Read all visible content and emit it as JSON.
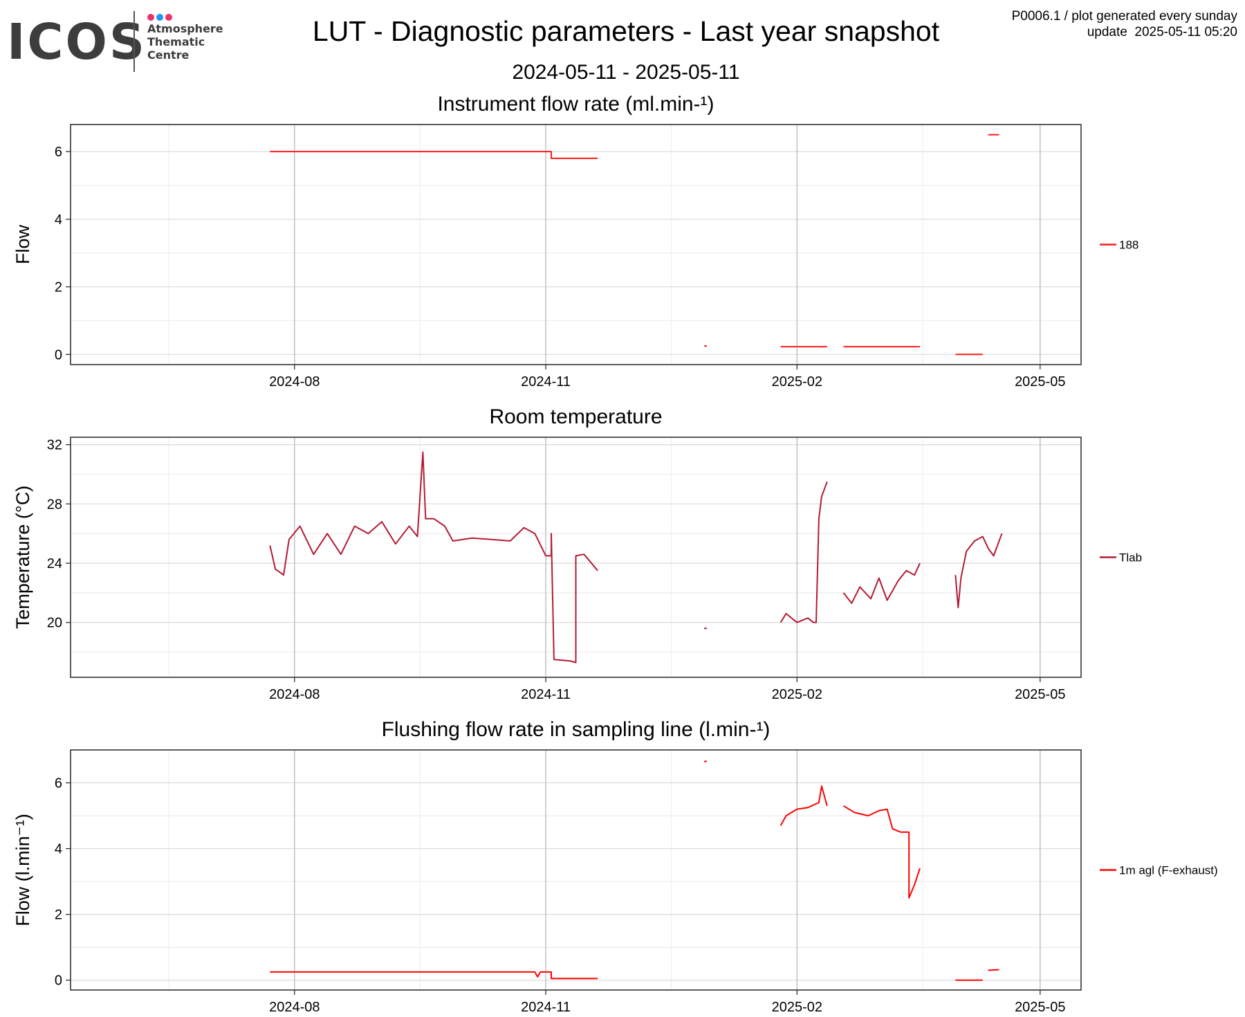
{
  "header": {
    "logo": {
      "word": "ICOS",
      "line1": "Atmosphere",
      "line2": "Thematic",
      "line3": "Centre",
      "dot_colors": [
        "#e8336c",
        "#2196f3",
        "#e8336c"
      ]
    },
    "title": "LUT - Diagnostic parameters - Last year snapshot",
    "date_range": "2024-05-11 - 2025-05-11",
    "meta_line1": "P0006.1 / plot generated every sunday",
    "meta_line2": "update  2025-05-11 05:20"
  },
  "chart_data": [
    {
      "type": "line",
      "title": "Instrument flow rate (ml.min-¹)",
      "ylabel": "Flow",
      "xlabel": "",
      "x_range": [
        "2024-05-11",
        "2025-05-16"
      ],
      "ylim": [
        -0.3,
        6.8
      ],
      "x_ticks": [
        "2024-08-01",
        "2024-11-01",
        "2025-02-01",
        "2025-05-01"
      ],
      "x_tick_labels": [
        "2024-08",
        "2024-11",
        "2025-02",
        "2025-05"
      ],
      "y_ticks": [
        0,
        2,
        4,
        6
      ],
      "grid": true,
      "legend_position": "right",
      "series": [
        {
          "name": "188",
          "color": "#ff1a1a",
          "segments": [
            [
              [
                "2024-07-23",
                6.0
              ],
              [
                "2024-11-03",
                6.0
              ],
              [
                "2024-11-03",
                5.8
              ],
              [
                "2024-11-20",
                5.8
              ]
            ],
            [
              [
                "2024-12-29",
                0.25
              ],
              [
                "2024-12-30",
                0.25
              ]
            ],
            [
              [
                "2025-01-26",
                0.23
              ],
              [
                "2025-02-12",
                0.23
              ]
            ],
            [
              [
                "2025-02-18",
                0.23
              ],
              [
                "2025-03-18",
                0.23
              ]
            ],
            [
              [
                "2025-03-31",
                0.0
              ],
              [
                "2025-04-10",
                0.0
              ]
            ],
            [
              [
                "2025-04-12",
                6.5
              ],
              [
                "2025-04-16",
                6.5
              ]
            ]
          ]
        }
      ]
    },
    {
      "type": "line",
      "title": "Room temperature",
      "ylabel": "Temperature (°C)",
      "xlabel": "",
      "x_range": [
        "2024-05-11",
        "2025-05-16"
      ],
      "ylim": [
        16.3,
        32.5
      ],
      "x_ticks": [
        "2024-08-01",
        "2024-11-01",
        "2025-02-01",
        "2025-05-01"
      ],
      "x_tick_labels": [
        "2024-08",
        "2024-11",
        "2025-02",
        "2025-05"
      ],
      "y_ticks": [
        20,
        24,
        28,
        32
      ],
      "grid": true,
      "legend_position": "right",
      "series": [
        {
          "name": "Tlab",
          "color": "#b31b34",
          "segments": [
            [
              [
                "2024-07-23",
                25.2
              ],
              [
                "2024-07-25",
                23.6
              ],
              [
                "2024-07-28",
                23.2
              ],
              [
                "2024-07-30",
                25.6
              ],
              [
                "2024-08-03",
                26.5
              ],
              [
                "2024-08-08",
                24.6
              ],
              [
                "2024-08-13",
                26.0
              ],
              [
                "2024-08-18",
                24.6
              ],
              [
                "2024-08-23",
                26.5
              ],
              [
                "2024-08-28",
                26.0
              ],
              [
                "2024-09-02",
                26.8
              ],
              [
                "2024-09-07",
                25.3
              ],
              [
                "2024-09-12",
                26.5
              ],
              [
                "2024-09-15",
                25.8
              ],
              [
                "2024-09-17",
                31.5
              ],
              [
                "2024-09-18",
                27.0
              ],
              [
                "2024-09-21",
                27.0
              ],
              [
                "2024-09-25",
                26.5
              ],
              [
                "2024-09-28",
                25.5
              ],
              [
                "2024-10-05",
                25.7
              ],
              [
                "2024-10-12",
                25.6
              ],
              [
                "2024-10-19",
                25.5
              ],
              [
                "2024-10-24",
                26.4
              ],
              [
                "2024-10-28",
                26.0
              ],
              [
                "2024-11-01",
                24.5
              ],
              [
                "2024-11-03",
                24.5
              ],
              [
                "2024-11-03",
                26.0
              ],
              [
                "2024-11-04",
                17.5
              ],
              [
                "2024-11-10",
                17.4
              ],
              [
                "2024-11-12",
                17.3
              ],
              [
                "2024-11-12",
                24.5
              ],
              [
                "2024-11-15",
                24.6
              ],
              [
                "2024-11-20",
                23.5
              ]
            ],
            [
              [
                "2024-12-29",
                19.6
              ],
              [
                "2024-12-30",
                19.6
              ]
            ],
            [
              [
                "2025-01-26",
                20.0
              ],
              [
                "2025-01-28",
                20.6
              ],
              [
                "2025-02-01",
                20.0
              ],
              [
                "2025-02-05",
                20.3
              ],
              [
                "2025-02-07",
                20.0
              ],
              [
                "2025-02-08",
                20.0
              ],
              [
                "2025-02-09",
                27.0
              ],
              [
                "2025-02-10",
                28.5
              ],
              [
                "2025-02-12",
                29.5
              ]
            ],
            [
              [
                "2025-02-18",
                22.0
              ],
              [
                "2025-02-21",
                21.3
              ],
              [
                "2025-02-24",
                22.4
              ],
              [
                "2025-02-28",
                21.6
              ],
              [
                "2025-03-03",
                23.0
              ],
              [
                "2025-03-06",
                21.5
              ],
              [
                "2025-03-10",
                22.8
              ],
              [
                "2025-03-13",
                23.5
              ],
              [
                "2025-03-16",
                23.2
              ],
              [
                "2025-03-18",
                24.0
              ]
            ],
            [
              [
                "2025-03-31",
                23.2
              ],
              [
                "2025-04-01",
                21.0
              ],
              [
                "2025-04-02",
                23.0
              ],
              [
                "2025-04-04",
                24.8
              ],
              [
                "2025-04-07",
                25.5
              ],
              [
                "2025-04-10",
                25.8
              ],
              [
                "2025-04-12",
                25.0
              ],
              [
                "2025-04-14",
                24.5
              ],
              [
                "2025-04-17",
                26.0
              ]
            ]
          ]
        }
      ]
    },
    {
      "type": "line",
      "title": "Flushing flow rate in sampling line (l.min-¹)",
      "ylabel": "Flow (l.min⁻¹)",
      "xlabel": "",
      "x_range": [
        "2024-05-11",
        "2025-05-16"
      ],
      "ylim": [
        -0.3,
        7.0
      ],
      "x_ticks": [
        "2024-08-01",
        "2024-11-01",
        "2025-02-01",
        "2025-05-01"
      ],
      "x_tick_labels": [
        "2024-08",
        "2024-11",
        "2025-02",
        "2025-05"
      ],
      "y_ticks": [
        0,
        2,
        4,
        6
      ],
      "grid": true,
      "legend_position": "right",
      "series": [
        {
          "name": "1m agl (F-exhaust)",
          "color": "#ff0000",
          "segments": [
            [
              [
                "2024-07-23",
                0.25
              ],
              [
                "2024-10-28",
                0.25
              ],
              [
                "2024-10-29",
                0.1
              ],
              [
                "2024-10-30",
                0.25
              ],
              [
                "2024-11-03",
                0.25
              ],
              [
                "2024-11-03",
                0.05
              ],
              [
                "2024-11-20",
                0.05
              ]
            ],
            [
              [
                "2024-12-29",
                6.65
              ],
              [
                "2024-12-30",
                6.65
              ]
            ],
            [
              [
                "2025-01-26",
                4.7
              ],
              [
                "2025-01-28",
                5.0
              ],
              [
                "2025-02-01",
                5.2
              ],
              [
                "2025-02-05",
                5.25
              ],
              [
                "2025-02-09",
                5.4
              ],
              [
                "2025-02-10",
                5.9
              ],
              [
                "2025-02-12",
                5.3
              ]
            ],
            [
              [
                "2025-02-18",
                5.3
              ],
              [
                "2025-02-22",
                5.1
              ],
              [
                "2025-02-27",
                5.0
              ],
              [
                "2025-03-03",
                5.15
              ],
              [
                "2025-03-06",
                5.2
              ],
              [
                "2025-03-08",
                4.6
              ],
              [
                "2025-03-11",
                4.5
              ],
              [
                "2025-03-14",
                4.5
              ],
              [
                "2025-03-14",
                2.5
              ],
              [
                "2025-03-16",
                2.9
              ],
              [
                "2025-03-18",
                3.4
              ]
            ],
            [
              [
                "2025-03-31",
                0.0
              ],
              [
                "2025-04-10",
                0.0
              ]
            ],
            [
              [
                "2025-04-12",
                0.3
              ],
              [
                "2025-04-16",
                0.32
              ]
            ]
          ]
        }
      ]
    }
  ]
}
